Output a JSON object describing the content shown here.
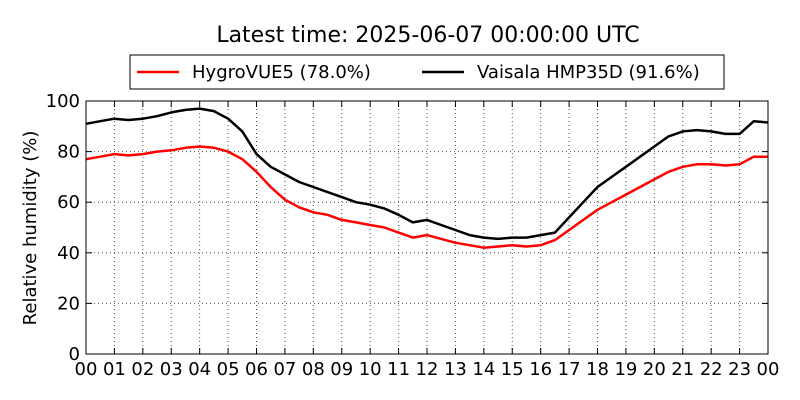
{
  "chart_data": {
    "type": "line",
    "title": "Latest time: 2025-06-07 00:00:00 UTC",
    "xlabel": "",
    "ylabel": "Relative humidity (%)",
    "xlim": [
      0,
      24
    ],
    "ylim": [
      0,
      100
    ],
    "x_ticks": [
      "00",
      "01",
      "02",
      "03",
      "04",
      "05",
      "06",
      "07",
      "08",
      "09",
      "10",
      "11",
      "12",
      "13",
      "14",
      "15",
      "16",
      "17",
      "18",
      "19",
      "20",
      "21",
      "22",
      "23",
      "00"
    ],
    "y_ticks": [
      "0",
      "20",
      "40",
      "60",
      "80",
      "100"
    ],
    "grid": true,
    "legend_placement": "top-center",
    "series": [
      {
        "name": "HygroVUE5 (78.0%)",
        "color": "#ff0000",
        "x": [
          0,
          0.5,
          1,
          1.5,
          2,
          2.5,
          3,
          3.5,
          4,
          4.5,
          5,
          5.5,
          6,
          6.5,
          7,
          7.5,
          8,
          8.5,
          9,
          9.5,
          10,
          10.5,
          11,
          11.5,
          12,
          12.5,
          13,
          13.5,
          14,
          14.5,
          15,
          15.5,
          16,
          16.5,
          17,
          17.5,
          18,
          18.5,
          19,
          19.5,
          20,
          20.5,
          21,
          21.5,
          22,
          22.5,
          23,
          23.5,
          24
        ],
        "values": [
          77,
          78,
          79,
          78.5,
          79,
          80,
          80.5,
          81.5,
          82,
          81.5,
          80,
          77,
          72,
          66,
          61,
          58,
          56,
          55,
          53,
          52,
          51,
          50,
          48,
          46,
          47,
          45.5,
          44,
          43,
          42,
          42.5,
          43,
          42.5,
          43,
          45,
          49,
          53,
          57,
          60,
          63,
          66,
          69,
          72,
          74,
          75,
          75,
          74.5,
          75,
          78,
          78
        ]
      },
      {
        "name": "Vaisala HMP35D (91.6%)",
        "color": "#000000",
        "x": [
          0,
          0.5,
          1,
          1.5,
          2,
          2.5,
          3,
          3.5,
          4,
          4.5,
          5,
          5.5,
          6,
          6.5,
          7,
          7.5,
          8,
          8.5,
          9,
          9.5,
          10,
          10.5,
          11,
          11.5,
          12,
          12.5,
          13,
          13.5,
          14,
          14.5,
          15,
          15.5,
          16,
          16.5,
          17,
          17.5,
          18,
          18.5,
          19,
          19.5,
          20,
          20.5,
          21,
          21.5,
          22,
          22.5,
          23,
          23.5,
          24
        ],
        "values": [
          91,
          92,
          93,
          92.5,
          93,
          94,
          95.5,
          96.5,
          97,
          96,
          93,
          88,
          79,
          74,
          71,
          68,
          66,
          64,
          62,
          60,
          59,
          57.5,
          55,
          52,
          53,
          51,
          49,
          47,
          46,
          45.5,
          46,
          46,
          47,
          48,
          54,
          60,
          66,
          70,
          74,
          78,
          82,
          86,
          88,
          88.5,
          88,
          87,
          87,
          92,
          91.5
        ]
      }
    ]
  }
}
